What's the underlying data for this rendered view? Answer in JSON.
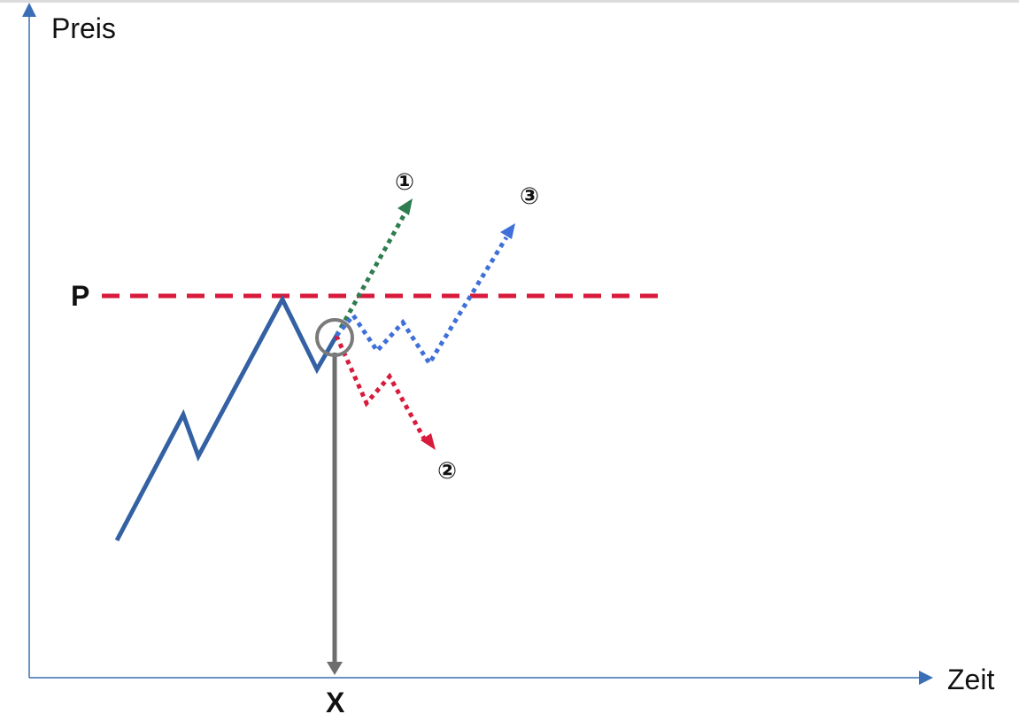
{
  "axes": {
    "y_label": "Preis",
    "x_label": "Zeit"
  },
  "price_level_label": "P",
  "time_marker_label": "X",
  "scenarios": [
    {
      "label": "①",
      "color": "#2E7D4F"
    },
    {
      "label": "②",
      "color": "#D81B3C"
    },
    {
      "label": "③",
      "color": "#3F6FD8"
    }
  ],
  "colors": {
    "axis": "#3B6FB5",
    "price_path": "#3461A3",
    "resistance": "#D81B3C",
    "marker": "#6E6E6E"
  },
  "icons": {
    "focus": "circle-highlight-icon",
    "arrow": "arrowhead-icon"
  }
}
